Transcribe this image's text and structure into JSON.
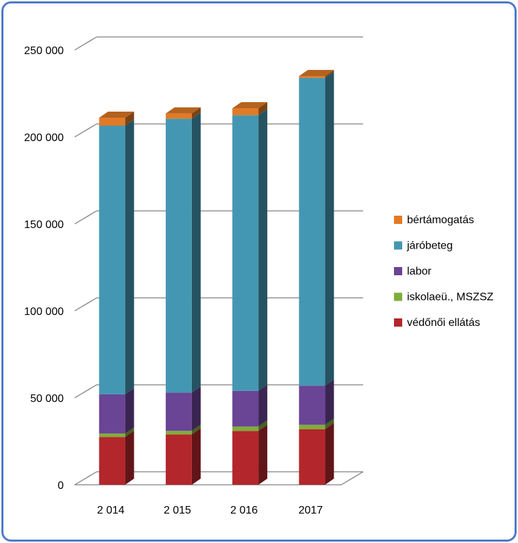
{
  "chart_data": {
    "type": "bar",
    "stacked": true,
    "three_d": true,
    "categories": [
      "2 014",
      "2 015",
      "2 016",
      "2017"
    ],
    "y_ticks": [
      "0",
      "50 000",
      "100 000",
      "150 000",
      "200 000",
      "250 000"
    ],
    "ylim": [
      0,
      250000
    ],
    "grid": true,
    "legend_position": "right",
    "series": [
      {
        "name": "védőnői ellátás",
        "color": "#b3262b",
        "values": [
          27500,
          29000,
          31000,
          32000
        ]
      },
      {
        "name": "iskolaeü., MSZSZ",
        "color": "#7fae3a",
        "values": [
          2000,
          2000,
          2500,
          2500
        ]
      },
      {
        "name": "labor",
        "color": "#6a4495",
        "values": [
          22500,
          22000,
          20500,
          22500
        ]
      },
      {
        "name": "járóbeteg",
        "color": "#4497b2",
        "values": [
          154500,
          157500,
          158500,
          177000
        ]
      },
      {
        "name": "bértámogatás",
        "color": "#e27a25",
        "values": [
          4500,
          3000,
          4000,
          1000
        ]
      }
    ]
  }
}
